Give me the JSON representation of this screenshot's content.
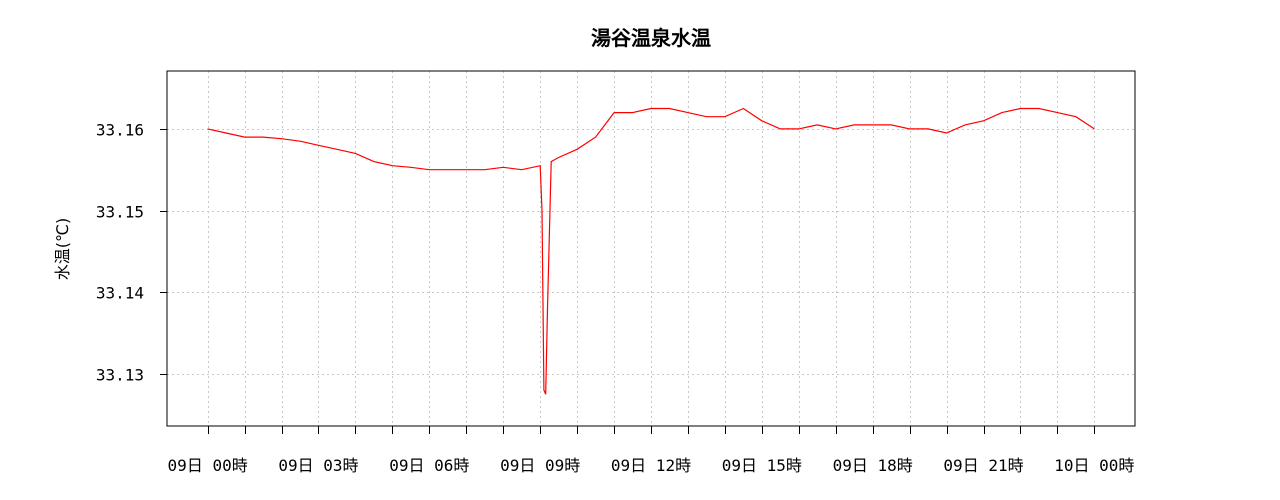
{
  "chart_data": {
    "type": "line",
    "title": "湯谷温泉水温",
    "ylabel": "水温(℃)",
    "xlabel": "",
    "ylim": [
      33.1236,
      33.1671
    ],
    "yticks": [
      33.13,
      33.14,
      33.15,
      33.16
    ],
    "ytick_labels": [
      "33.13",
      "33.14",
      "33.15",
      "33.16"
    ],
    "x_unit": "hours",
    "xlim": [
      -1.1,
      25.1
    ],
    "xticks": [
      0,
      3,
      6,
      9,
      12,
      15,
      18,
      21,
      24
    ],
    "xtick_labels": [
      "09日 00時",
      "09日 03時",
      "09日 06時",
      "09日 09時",
      "09日 12時",
      "09日 15時",
      "09日 18時",
      "09日 21時",
      "10日 00時"
    ],
    "minor_xticks": [
      1,
      2,
      4,
      5,
      7,
      8,
      10,
      11,
      13,
      14,
      16,
      17,
      19,
      20,
      22,
      23
    ],
    "grid": true,
    "series": [
      {
        "color": "#ff0000",
        "x": [
          0,
          0.5,
          1,
          1.5,
          2,
          2.5,
          3,
          3.5,
          4,
          4.5,
          5,
          5.5,
          6,
          6.5,
          7,
          7.5,
          8,
          8.5,
          9,
          9.05,
          9.1,
          9.15,
          9.2,
          9.3,
          9.5,
          10,
          10.5,
          11,
          11.5,
          12,
          12.5,
          13,
          13.5,
          14,
          14.5,
          15,
          15.5,
          16,
          16.5,
          17,
          17.5,
          18,
          18.5,
          19,
          19.5,
          20,
          20.5,
          21,
          21.5,
          22,
          22.5,
          23,
          23.5,
          24
        ],
        "values": [
          33.16,
          33.1595,
          33.159,
          33.159,
          33.1588,
          33.1585,
          33.158,
          33.1575,
          33.157,
          33.156,
          33.1555,
          33.1553,
          33.155,
          33.155,
          33.155,
          33.155,
          33.1553,
          33.155,
          33.1555,
          33.15,
          33.128,
          33.1275,
          33.138,
          33.156,
          33.1565,
          33.1575,
          33.159,
          33.162,
          33.162,
          33.1625,
          33.1625,
          33.162,
          33.1615,
          33.1615,
          33.1625,
          33.161,
          33.16,
          33.16,
          33.1605,
          33.16,
          33.1605,
          33.1605,
          33.1605,
          33.16,
          33.16,
          33.1595,
          33.1605,
          33.161,
          33.162,
          33.1625,
          33.1625,
          33.162,
          33.1615,
          33.16
        ]
      }
    ]
  }
}
